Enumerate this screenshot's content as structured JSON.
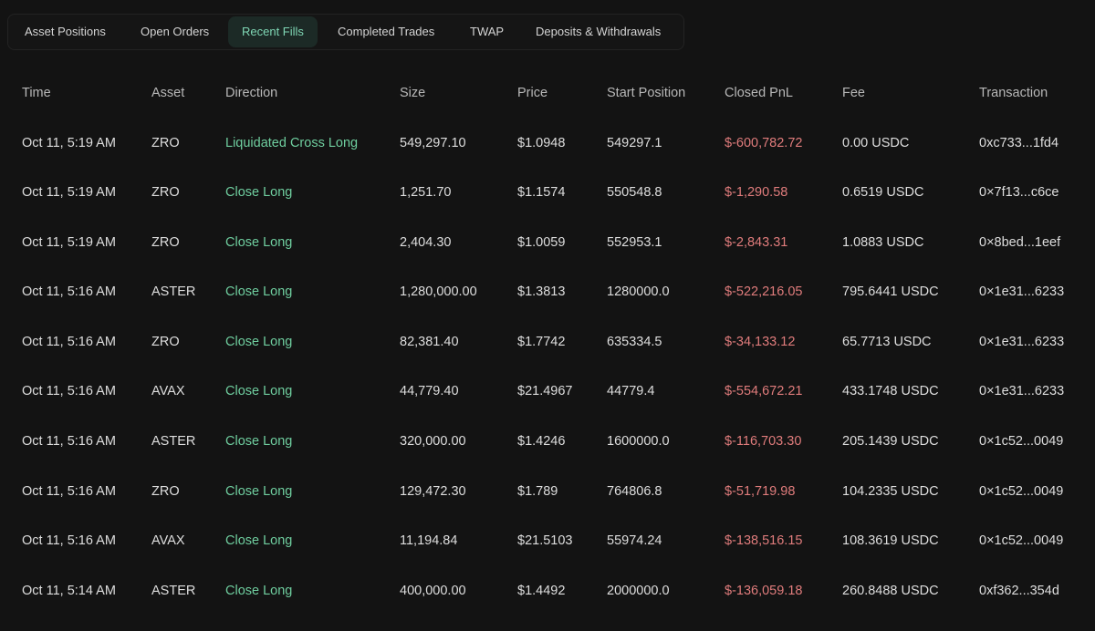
{
  "tabs": [
    {
      "label": "Asset Positions"
    },
    {
      "label": "Open Orders"
    },
    {
      "label": "Recent Fills"
    },
    {
      "label": "Completed Trades"
    },
    {
      "label": "TWAP"
    },
    {
      "label": "Deposits & Withdrawals"
    }
  ],
  "active_tab": "Recent Fills",
  "columns": [
    "Time",
    "Asset",
    "Direction",
    "Size",
    "Price",
    "Start Position",
    "Closed PnL",
    "Fee",
    "Transaction"
  ],
  "rows": [
    {
      "time": "Oct 11, 5:19 AM",
      "asset": "ZRO",
      "direction": "Liquidated Cross Long",
      "size": "549,297.10",
      "price": "$1.0948",
      "start_position": "549297.1",
      "closed_pnl": "$-600,782.72",
      "fee": "0.00 USDC",
      "transaction": "0xc733...1fd4"
    },
    {
      "time": "Oct 11, 5:19 AM",
      "asset": "ZRO",
      "direction": "Close Long",
      "size": "1,251.70",
      "price": "$1.1574",
      "start_position": "550548.8",
      "closed_pnl": "$-1,290.58",
      "fee": "0.6519 USDC",
      "transaction": "0×7f13...c6ce"
    },
    {
      "time": "Oct 11, 5:19 AM",
      "asset": "ZRO",
      "direction": "Close Long",
      "size": "2,404.30",
      "price": "$1.0059",
      "start_position": "552953.1",
      "closed_pnl": "$-2,843.31",
      "fee": "1.0883 USDC",
      "transaction": "0×8bed...1eef"
    },
    {
      "time": "Oct 11, 5:16 AM",
      "asset": "ASTER",
      "direction": "Close Long",
      "size": "1,280,000.00",
      "price": "$1.3813",
      "start_position": "1280000.0",
      "closed_pnl": "$-522,216.05",
      "fee": "795.6441 USDC",
      "transaction": "0×1e31...6233"
    },
    {
      "time": "Oct 11, 5:16 AM",
      "asset": "ZRO",
      "direction": "Close Long",
      "size": "82,381.40",
      "price": "$1.7742",
      "start_position": "635334.5",
      "closed_pnl": "$-34,133.12",
      "fee": "65.7713 USDC",
      "transaction": "0×1e31...6233"
    },
    {
      "time": "Oct 11, 5:16 AM",
      "asset": "AVAX",
      "direction": "Close Long",
      "size": "44,779.40",
      "price": "$21.4967",
      "start_position": "44779.4",
      "closed_pnl": "$-554,672.21",
      "fee": "433.1748 USDC",
      "transaction": "0×1e31...6233"
    },
    {
      "time": "Oct 11, 5:16 AM",
      "asset": "ASTER",
      "direction": "Close Long",
      "size": "320,000.00",
      "price": "$1.4246",
      "start_position": "1600000.0",
      "closed_pnl": "$-116,703.30",
      "fee": "205.1439 USDC",
      "transaction": "0×1c52...0049"
    },
    {
      "time": "Oct 11, 5:16 AM",
      "asset": "ZRO",
      "direction": "Close Long",
      "size": "129,472.30",
      "price": "$1.789",
      "start_position": "764806.8",
      "closed_pnl": "$-51,719.98",
      "fee": "104.2335 USDC",
      "transaction": "0×1c52...0049"
    },
    {
      "time": "Oct 11, 5:16 AM",
      "asset": "AVAX",
      "direction": "Close Long",
      "size": "11,194.84",
      "price": "$21.5103",
      "start_position": "55974.24",
      "closed_pnl": "$-138,516.15",
      "fee": "108.3619 USDC",
      "transaction": "0×1c52...0049"
    },
    {
      "time": "Oct 11, 5:14 AM",
      "asset": "ASTER",
      "direction": "Close Long",
      "size": "400,000.00",
      "price": "$1.4492",
      "start_position": "2000000.0",
      "closed_pnl": "$-136,059.18",
      "fee": "260.8488 USDC",
      "transaction": "0xf362...354d"
    }
  ],
  "colors": {
    "background": "#131313",
    "active_tab_text": "#7fd6b4",
    "active_tab_bg": "#1c2a26",
    "direction_green": "#6fce9f",
    "pnl_red": "#e07c7c"
  }
}
